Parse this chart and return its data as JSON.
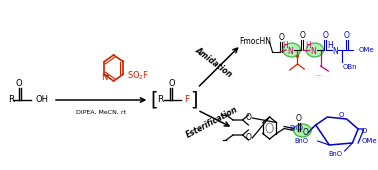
{
  "bg_color": "#ffffff",
  "fig_width": 3.78,
  "fig_height": 1.7,
  "dpi": 100,
  "rc": "#cc2200",
  "bc": "#0000cc",
  "gc": "#44cc44",
  "pink": "#cc0077",
  "red2": "#cc0000",
  "black": "#000000",
  "dipea": "DIPEA, MeCN, rt",
  "amidation": "Amidation",
  "esterification": "Esterification",
  "fmochн": "FmocHN",
  "ome": "OMe",
  "obn": "OBn",
  "bno1": "BnO",
  "bno2": "BnO",
  "bno3": "BnO"
}
